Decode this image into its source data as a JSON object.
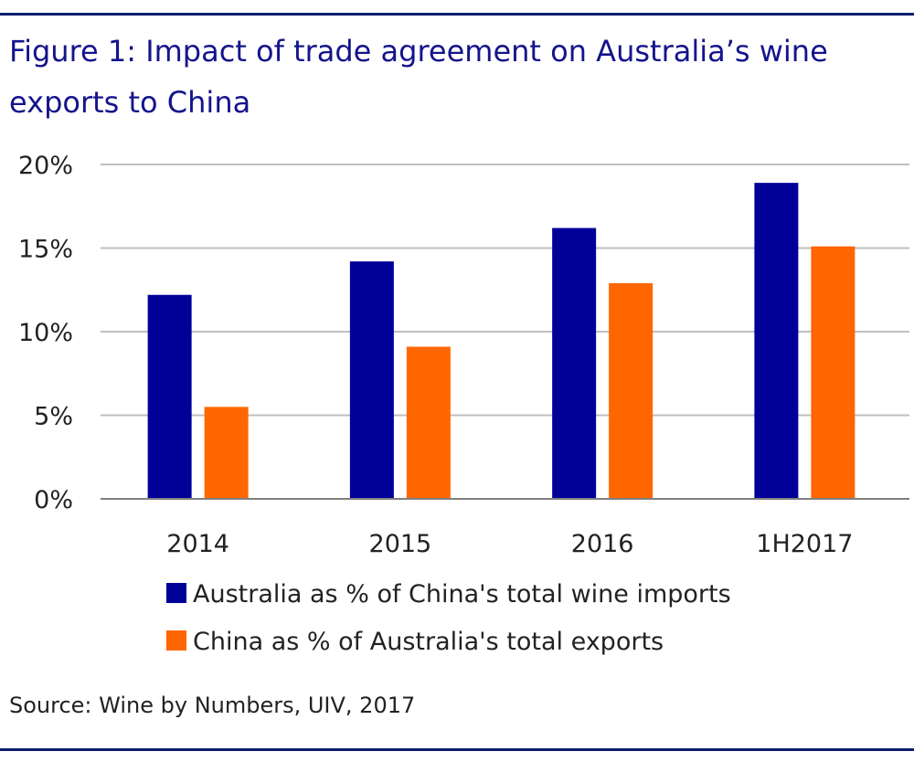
{
  "title": "Figure 1: Impact of trade agreement on Australia’s wine exports to China",
  "source": "Source: Wine by Numbers, UIV, 2017",
  "colors": {
    "rule": "#0b1f6e",
    "title": "#14148c",
    "grid": "#bfbfbf",
    "axis": "#7f7f7f"
  },
  "chart_data": {
    "type": "bar",
    "categories": [
      "2014",
      "2015",
      "2016",
      "1H2017"
    ],
    "series": [
      {
        "name": "Australia as % of China's total wine imports",
        "color": "#000099",
        "values": [
          12.2,
          14.2,
          16.2,
          18.9
        ]
      },
      {
        "name": "China as % of Australia's total exports",
        "color": "#ff6600",
        "values": [
          5.5,
          9.1,
          12.9,
          15.1
        ]
      }
    ],
    "yticks": [
      "0%",
      "5%",
      "10%",
      "15%",
      "20%"
    ],
    "ylim": [
      0,
      20
    ],
    "ystep": 5,
    "grid": true,
    "legend_position": "bottom-center"
  }
}
